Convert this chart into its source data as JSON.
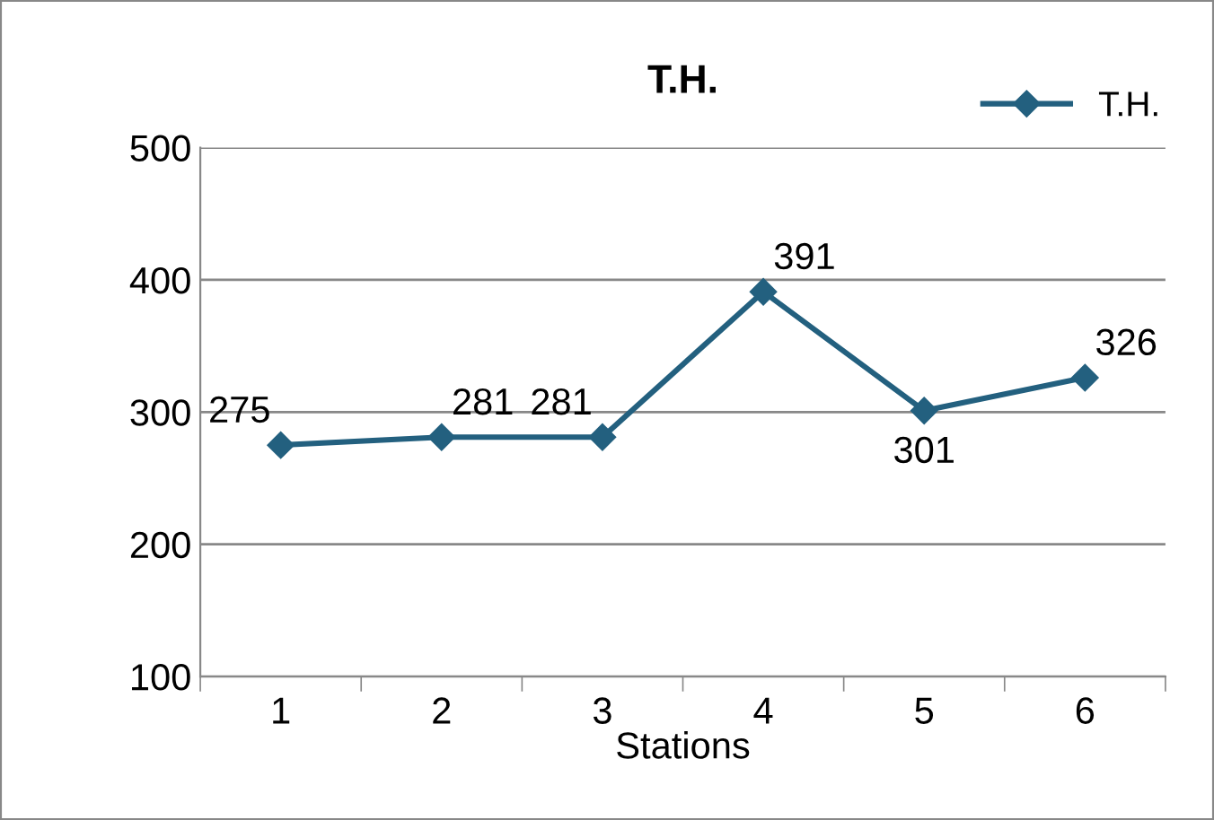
{
  "chart_data": {
    "type": "line",
    "title": "T.H.",
    "xlabel": "Stations",
    "categories": [
      "1",
      "2",
      "3",
      "4",
      "5",
      "6"
    ],
    "series": [
      {
        "name": "T.H.",
        "color": "#23607f",
        "values": [
          275,
          281,
          281,
          391,
          301,
          326
        ]
      }
    ],
    "ylim": [
      100,
      500
    ],
    "yticks": [
      100,
      200,
      300,
      400,
      500
    ],
    "grid": "y",
    "legend": "top right",
    "marker": "diamond",
    "line_style": "solid",
    "data_labels": true
  }
}
